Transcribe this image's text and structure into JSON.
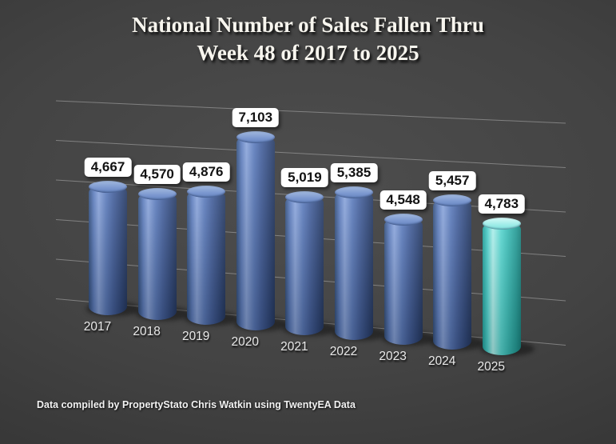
{
  "title": {
    "line1": "National Number of Sales Fallen Thru",
    "line2": "Week 48 of 2017 to 2025"
  },
  "footer": {
    "credit": "Data compiled by PropertyStato Chris Watkin using TwentyEA Data"
  },
  "chart_data": {
    "type": "bar",
    "style": "3d-cylinder",
    "title": "National Number of Sales Fallen Thru Week 48 of 2017 to 2025",
    "categories": [
      "2017",
      "2018",
      "2019",
      "2020",
      "2021",
      "2022",
      "2023",
      "2024",
      "2025"
    ],
    "values": [
      4667,
      4570,
      4876,
      7103,
      5019,
      5385,
      4548,
      5457,
      4783
    ],
    "value_labels": [
      "4,667",
      "4,570",
      "4,876",
      "7,103",
      "5,019",
      "5,385",
      "4,548",
      "5,457",
      "4,783"
    ],
    "highlight_index": 8,
    "xlabel": "",
    "ylabel": "",
    "ylim": [
      0,
      7500
    ],
    "grid": true,
    "legend": false,
    "colors": {
      "bar": "#4a6aad",
      "bar_highlight": "#55dcd6",
      "background": "#3d3d3d",
      "gridline": "#9a9a9a",
      "label_box": "#ffffff",
      "label_text": "#121212"
    }
  }
}
